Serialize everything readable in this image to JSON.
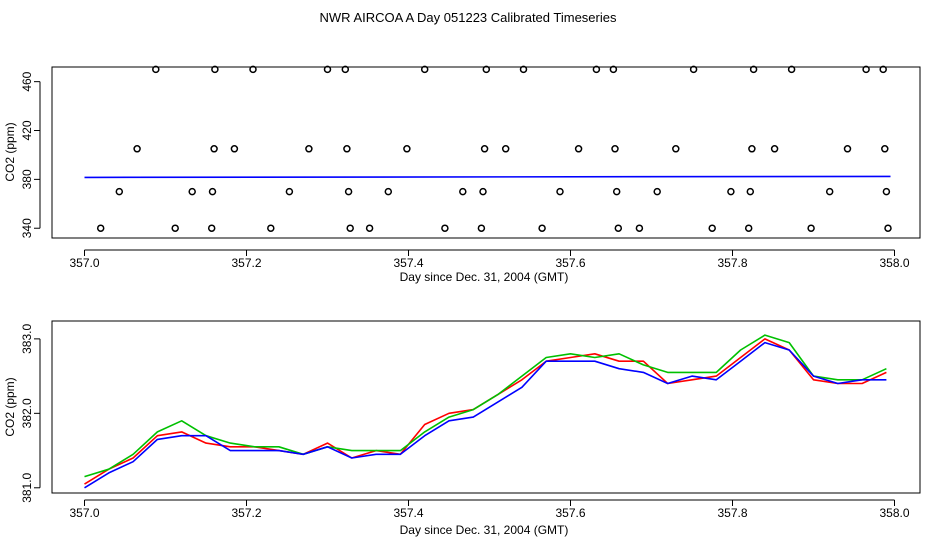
{
  "title": "NWR AIRCOA A  Day 051223  Calibrated Timeseries",
  "colors": {
    "axis": "#000000",
    "marker": "#000000",
    "blue": "#0000ff",
    "green": "#00c000",
    "red": "#ff0000"
  },
  "chart_data": [
    {
      "type": "scatter",
      "xlabel": "Day since Dec. 31, 2004 (GMT)",
      "ylabel": "CO2 (ppm)",
      "xlim": [
        356.98,
        358.03
      ],
      "ylim": [
        332,
        472
      ],
      "xticks": [
        357.0,
        357.2,
        357.4,
        357.6,
        357.8,
        358.0
      ],
      "xtick_labels": [
        "357.0",
        "357.2",
        "357.4",
        "357.6",
        "357.8",
        "358.0"
      ],
      "yticks": [
        340,
        380,
        420,
        460
      ],
      "ytick_labels": [
        "340",
        "380",
        "420",
        "460"
      ],
      "grid": false,
      "series": [
        {
          "marker": "open-circle",
          "color": "#000000",
          "points": [
            [
              357.02,
              340
            ],
            [
              357.043,
              370
            ],
            [
              357.065,
              405
            ],
            [
              357.088,
              470
            ],
            [
              357.112,
              340
            ],
            [
              357.133,
              370
            ],
            [
              357.157,
              340
            ],
            [
              357.158,
              370
            ],
            [
              357.16,
              405
            ],
            [
              357.161,
              470
            ],
            [
              357.185,
              405
            ],
            [
              357.208,
              470
            ],
            [
              357.23,
              340
            ],
            [
              357.253,
              370
            ],
            [
              357.277,
              405
            ],
            [
              357.3,
              470
            ],
            [
              357.322,
              470
            ],
            [
              357.324,
              405
            ],
            [
              357.326,
              370
            ],
            [
              357.328,
              340
            ],
            [
              357.352,
              340
            ],
            [
              357.375,
              370
            ],
            [
              357.398,
              405
            ],
            [
              357.42,
              470
            ],
            [
              357.445,
              340
            ],
            [
              357.467,
              370
            ],
            [
              357.49,
              340
            ],
            [
              357.492,
              370
            ],
            [
              357.494,
              405
            ],
            [
              357.496,
              470
            ],
            [
              357.52,
              405
            ],
            [
              357.542,
              470
            ],
            [
              357.565,
              340
            ],
            [
              357.587,
              370
            ],
            [
              357.61,
              405
            ],
            [
              357.632,
              470
            ],
            [
              357.653,
              470
            ],
            [
              357.655,
              405
            ],
            [
              357.657,
              370
            ],
            [
              357.659,
              340
            ],
            [
              357.685,
              340
            ],
            [
              357.707,
              370
            ],
            [
              357.73,
              405
            ],
            [
              357.752,
              470
            ],
            [
              357.775,
              340
            ],
            [
              357.798,
              370
            ],
            [
              357.82,
              340
            ],
            [
              357.822,
              370
            ],
            [
              357.824,
              405
            ],
            [
              357.826,
              470
            ],
            [
              357.852,
              405
            ],
            [
              357.873,
              470
            ],
            [
              357.897,
              340
            ],
            [
              357.92,
              370
            ],
            [
              357.942,
              405
            ],
            [
              357.965,
              470
            ],
            [
              357.986,
              470
            ],
            [
              357.988,
              405
            ],
            [
              357.99,
              370
            ],
            [
              357.992,
              340
            ]
          ]
        },
        {
          "type": "line",
          "color": "#0000ff",
          "x": [
            357.0,
            357.995
          ],
          "y": [
            381.6,
            382.4
          ]
        }
      ]
    },
    {
      "type": "line",
      "xlabel": "Day since Dec. 31, 2004 (GMT)",
      "ylabel": "CO2 (ppm)",
      "xlim": [
        356.98,
        358.03
      ],
      "ylim": [
        380.93,
        383.24
      ],
      "xticks": [
        357.0,
        357.2,
        357.4,
        357.6,
        357.8,
        358.0
      ],
      "xtick_labels": [
        "357.0",
        "357.2",
        "357.4",
        "357.6",
        "357.8",
        "358.0"
      ],
      "yticks": [
        381.0,
        382.0,
        383.0
      ],
      "ytick_labels": [
        "381.0",
        "382.0",
        "383.0"
      ],
      "grid": false,
      "series": [
        {
          "color": "#ff0000",
          "x": [
            357.0,
            357.03,
            357.06,
            357.09,
            357.12,
            357.15,
            357.18,
            357.21,
            357.24,
            357.27,
            357.3,
            357.33,
            357.36,
            357.39,
            357.42,
            357.45,
            357.48,
            357.51,
            357.54,
            357.57,
            357.6,
            357.63,
            357.66,
            357.69,
            357.72,
            357.75,
            357.78,
            357.81,
            357.84,
            357.87,
            357.9,
            357.93,
            357.96,
            357.99
          ],
          "y": [
            381.05,
            381.25,
            381.4,
            381.7,
            381.75,
            381.6,
            381.55,
            381.55,
            381.5,
            381.45,
            381.6,
            381.4,
            381.5,
            381.45,
            381.85,
            382.0,
            382.05,
            382.25,
            382.45,
            382.7,
            382.75,
            382.8,
            382.7,
            382.7,
            382.4,
            382.45,
            382.5,
            382.75,
            383.0,
            382.85,
            382.45,
            382.4,
            382.4,
            382.55
          ]
        },
        {
          "color": "#00c000",
          "x": [
            357.0,
            357.03,
            357.06,
            357.09,
            357.12,
            357.15,
            357.18,
            357.21,
            357.24,
            357.27,
            357.3,
            357.33,
            357.36,
            357.39,
            357.42,
            357.45,
            357.48,
            357.51,
            357.54,
            357.57,
            357.6,
            357.63,
            357.66,
            357.69,
            357.72,
            357.75,
            357.78,
            357.81,
            357.84,
            357.87,
            357.9,
            357.93,
            357.96,
            357.99
          ],
          "y": [
            381.15,
            381.25,
            381.45,
            381.75,
            381.9,
            381.7,
            381.6,
            381.55,
            381.55,
            381.45,
            381.55,
            381.5,
            381.5,
            381.5,
            381.75,
            381.95,
            382.05,
            382.25,
            382.5,
            382.75,
            382.8,
            382.75,
            382.8,
            382.65,
            382.55,
            382.55,
            382.55,
            382.85,
            383.05,
            382.95,
            382.5,
            382.45,
            382.45,
            382.6
          ]
        },
        {
          "color": "#0000ff",
          "x": [
            357.0,
            357.03,
            357.06,
            357.09,
            357.12,
            357.15,
            357.18,
            357.21,
            357.24,
            357.27,
            357.3,
            357.33,
            357.36,
            357.39,
            357.42,
            357.45,
            357.48,
            357.51,
            357.54,
            357.57,
            357.6,
            357.63,
            357.66,
            357.69,
            357.72,
            357.75,
            357.78,
            357.81,
            357.84,
            357.87,
            357.9,
            357.93,
            357.96,
            357.99
          ],
          "y": [
            381.0,
            381.2,
            381.35,
            381.65,
            381.7,
            381.7,
            381.5,
            381.5,
            381.5,
            381.45,
            381.55,
            381.4,
            381.45,
            381.45,
            381.7,
            381.9,
            381.95,
            382.15,
            382.35,
            382.7,
            382.7,
            382.7,
            382.6,
            382.55,
            382.4,
            382.5,
            382.45,
            382.7,
            382.95,
            382.85,
            382.5,
            382.4,
            382.45,
            382.45
          ]
        }
      ]
    }
  ]
}
